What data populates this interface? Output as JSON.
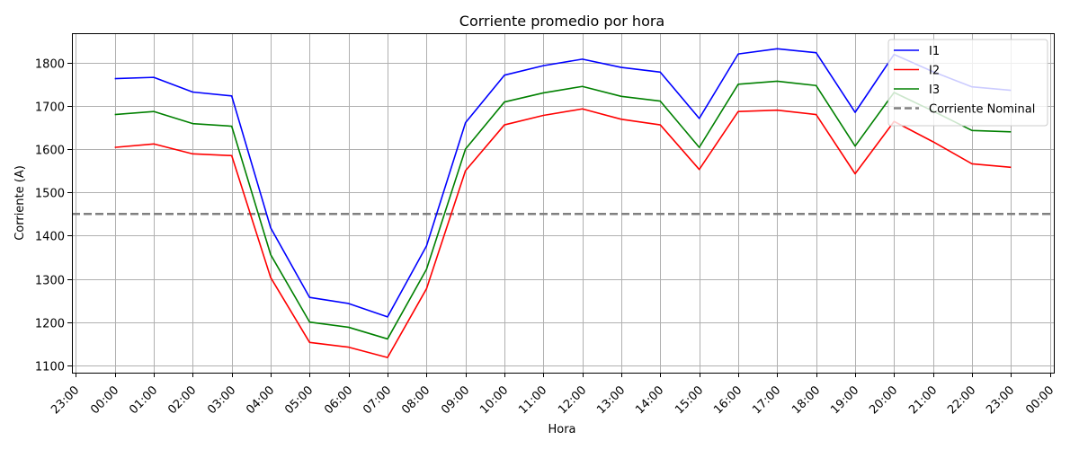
{
  "chart_data": {
    "type": "line",
    "title": "Corriente promedio por hora",
    "xlabel": "Hora",
    "ylabel": "Corriente (A)",
    "x_tick_labels": [
      "23:00",
      "00:00",
      "01:00",
      "02:00",
      "03:00",
      "04:00",
      "05:00",
      "06:00",
      "07:00",
      "08:00",
      "09:00",
      "10:00",
      "11:00",
      "12:00",
      "13:00",
      "14:00",
      "15:00",
      "16:00",
      "17:00",
      "18:00",
      "19:00",
      "20:00",
      "21:00",
      "22:00",
      "23:00",
      "00:00"
    ],
    "categories": [
      "00:00",
      "01:00",
      "02:00",
      "03:00",
      "04:00",
      "05:00",
      "06:00",
      "07:00",
      "08:00",
      "09:00",
      "10:00",
      "11:00",
      "12:00",
      "13:00",
      "14:00",
      "15:00",
      "16:00",
      "17:00",
      "18:00",
      "19:00",
      "20:00",
      "21:00",
      "22:00",
      "23:00"
    ],
    "x_range": [
      -1.1,
      24.1
    ],
    "ylim": [
      1083,
      1868
    ],
    "y_ticks": [
      1100,
      1200,
      1300,
      1400,
      1500,
      1600,
      1700,
      1800
    ],
    "grid": true,
    "legend_position": "top-right",
    "series": [
      {
        "name": "I1",
        "color": "#0000ff",
        "values": [
          1763,
          1766,
          1732,
          1723,
          1418,
          1257,
          1243,
          1212,
          1376,
          1661,
          1771,
          1793,
          1808,
          1789,
          1778,
          1671,
          1820,
          1832,
          1823,
          1685,
          1819,
          1779,
          1744,
          1736
        ]
      },
      {
        "name": "I2",
        "color": "#ff0000",
        "values": [
          1604,
          1612,
          1589,
          1585,
          1303,
          1153,
          1142,
          1118,
          1277,
          1550,
          1656,
          1678,
          1693,
          1669,
          1656,
          1553,
          1687,
          1690,
          1680,
          1543,
          1664,
          1617,
          1566,
          1558
        ]
      },
      {
        "name": "I3",
        "color": "#008000",
        "values": [
          1680,
          1687,
          1659,
          1653,
          1356,
          1200,
          1188,
          1161,
          1322,
          1600,
          1709,
          1730,
          1745,
          1722,
          1711,
          1604,
          1750,
          1757,
          1747,
          1607,
          1731,
          1688,
          1643,
          1640
        ]
      }
    ],
    "reference_line": {
      "name": "Corriente Nominal",
      "value": 1450,
      "color": "#808080",
      "style": "dashed"
    }
  }
}
